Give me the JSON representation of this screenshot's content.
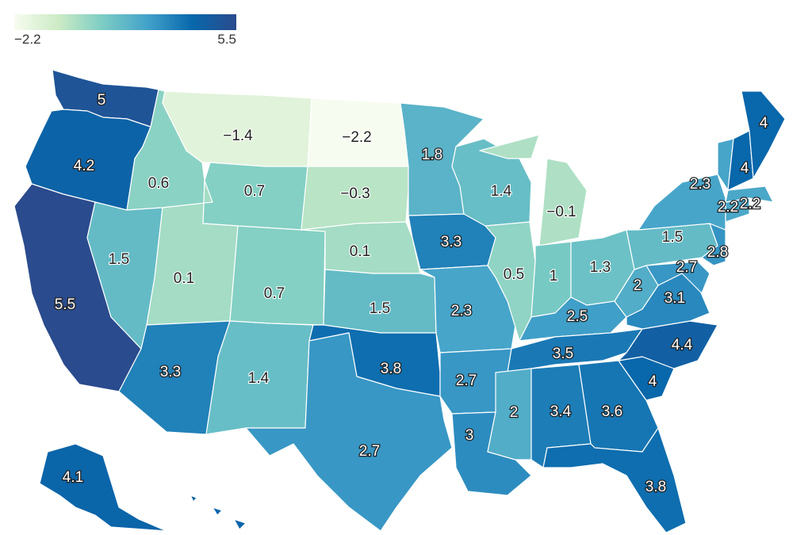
{
  "legend": {
    "min_label": "−2.2",
    "max_label": "5.5",
    "min": -2.2,
    "max": 5.5,
    "colors": [
      "#f7fcf0",
      "#ccebc5",
      "#7bccc4",
      "#43a2ca",
      "#0868ac",
      "#2a4b8d"
    ]
  },
  "states": [
    {
      "id": "WA",
      "value": 5,
      "label": "5"
    },
    {
      "id": "OR",
      "value": 4.2,
      "label": "4.2"
    },
    {
      "id": "CA",
      "value": 5.5,
      "label": "5.5"
    },
    {
      "id": "ID",
      "value": 0.6,
      "label": "0.6"
    },
    {
      "id": "NV",
      "value": 1.5,
      "label": "1.5"
    },
    {
      "id": "MT",
      "value": -1.4,
      "label": "−1.4"
    },
    {
      "id": "WY",
      "value": 0.7,
      "label": "0.7"
    },
    {
      "id": "UT",
      "value": 0.1,
      "label": "0.1"
    },
    {
      "id": "CO",
      "value": 0.7,
      "label": "0.7"
    },
    {
      "id": "AZ",
      "value": 3.3,
      "label": "3.3"
    },
    {
      "id": "NM",
      "value": 1.4,
      "label": "1.4"
    },
    {
      "id": "ND",
      "value": -2.2,
      "label": "−2.2"
    },
    {
      "id": "SD",
      "value": -0.3,
      "label": "−0.3"
    },
    {
      "id": "NE",
      "value": 0.1,
      "label": "0.1"
    },
    {
      "id": "KS",
      "value": 1.5,
      "label": "1.5"
    },
    {
      "id": "OK",
      "value": 3.8,
      "label": "3.8"
    },
    {
      "id": "TX",
      "value": 2.7,
      "label": "2.7"
    },
    {
      "id": "MN",
      "value": 1.8,
      "label": "1.8"
    },
    {
      "id": "IA",
      "value": 3.3,
      "label": "3.3"
    },
    {
      "id": "MO",
      "value": 2.3,
      "label": "2.3"
    },
    {
      "id": "AR",
      "value": 2.7,
      "label": "2.7"
    },
    {
      "id": "LA",
      "value": 3,
      "label": "3"
    },
    {
      "id": "WI",
      "value": 1.4,
      "label": "1.4"
    },
    {
      "id": "IL",
      "value": 0.5,
      "label": "0.5"
    },
    {
      "id": "MI",
      "value": -0.1,
      "label": "−0.1"
    },
    {
      "id": "IN",
      "value": 1,
      "label": "1"
    },
    {
      "id": "OH",
      "value": 1.3,
      "label": "1.3"
    },
    {
      "id": "KY",
      "value": 2.5,
      "label": "2.5"
    },
    {
      "id": "TN",
      "value": 3.5,
      "label": "3.5"
    },
    {
      "id": "MS",
      "value": 2,
      "label": "2"
    },
    {
      "id": "AL",
      "value": 3.4,
      "label": "3.4"
    },
    {
      "id": "GA",
      "value": 3.6,
      "label": "3.6"
    },
    {
      "id": "FL",
      "value": 3.8,
      "label": "3.8"
    },
    {
      "id": "SC",
      "value": 4,
      "label": "4"
    },
    {
      "id": "NC",
      "value": 4.4,
      "label": "4.4"
    },
    {
      "id": "VA",
      "value": 3.1,
      "label": "3.1"
    },
    {
      "id": "WV",
      "value": 2,
      "label": "2"
    },
    {
      "id": "MD",
      "value": 2.7,
      "label": "2.7"
    },
    {
      "id": "PA",
      "value": 1.5,
      "label": "1.5"
    },
    {
      "id": "NJ",
      "value": 2.8,
      "label": "2.8"
    },
    {
      "id": "NY",
      "value": 2.3,
      "label": "2.3"
    },
    {
      "id": "CT",
      "value": 2.2,
      "label": "2.2"
    },
    {
      "id": "MA",
      "value": 2.2,
      "label": "2.2"
    },
    {
      "id": "VT",
      "value": 2.3,
      "label": ""
    },
    {
      "id": "NH",
      "value": 4,
      "label": "4"
    },
    {
      "id": "ME",
      "value": 4,
      "label": "4"
    },
    {
      "id": "AK",
      "value": 4.1,
      "label": "4.1"
    },
    {
      "id": "HI",
      "value": 4.1,
      "label": ""
    }
  ]
}
